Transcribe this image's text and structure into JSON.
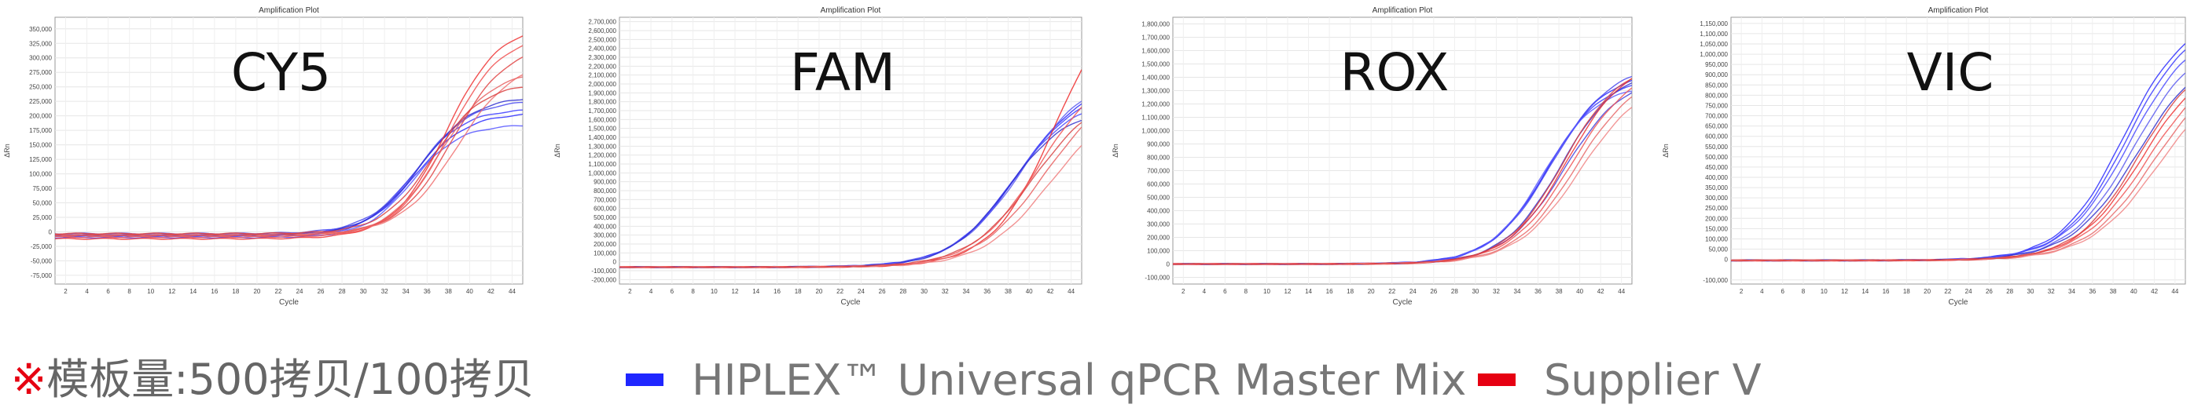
{
  "chart_data": [
    {
      "type": "line",
      "title": "Amplification Plot",
      "label": "CY5",
      "xlabel": "Cycle",
      "ylabel": "ΔRn",
      "xlim": [
        1,
        45
      ],
      "ylim": [
        -90000,
        370000
      ],
      "x_ticks": [
        2,
        4,
        6,
        8,
        10,
        12,
        14,
        16,
        18,
        20,
        22,
        24,
        26,
        28,
        30,
        32,
        34,
        36,
        38,
        40,
        42,
        44
      ],
      "y_ticks": [
        -75000,
        -50000,
        -25000,
        0,
        25000,
        50000,
        75000,
        100000,
        125000,
        150000,
        175000,
        200000,
        225000,
        250000,
        275000,
        300000,
        325000,
        350000
      ],
      "y_tick_labels": [
        "-75,000",
        "-50,000",
        "-25,000",
        "0",
        "25,000",
        "50,000",
        "75,000",
        "100,000",
        "125,000",
        "150,000",
        "175,000",
        "200,000",
        "225,000",
        "250,000",
        "275,000",
        "300,000",
        "325,000",
        "350,000"
      ],
      "series": [
        {
          "group": "blue",
          "color": "#2b2bff",
          "plateau": 210000,
          "mid": 35.0,
          "k": 0.42,
          "base": -5000
        },
        {
          "group": "blue",
          "color": "#3a3aff",
          "plateau": 220000,
          "mid": 34.8,
          "k": 0.43,
          "base": -8000
        },
        {
          "group": "blue",
          "color": "#4646ee",
          "plateau": 230000,
          "mid": 35.2,
          "k": 0.41,
          "base": -3000
        },
        {
          "group": "blue",
          "color": "#5555ff",
          "plateau": 195000,
          "mid": 34.6,
          "k": 0.45,
          "base": -10000
        },
        {
          "group": "blue",
          "color": "#3030d0",
          "plateau": 240000,
          "mid": 35.4,
          "k": 0.4,
          "base": -6000
        },
        {
          "group": "red",
          "color": "#ee3333",
          "plateau": 370000,
          "mid": 37.8,
          "k": 0.4,
          "base": -12000
        },
        {
          "group": "red",
          "color": "#f05050",
          "plateau": 350000,
          "mid": 38.0,
          "k": 0.4,
          "base": -9000
        },
        {
          "group": "red",
          "color": "#e04444",
          "plateau": 330000,
          "mid": 38.4,
          "k": 0.39,
          "base": -6000
        },
        {
          "group": "red",
          "color": "#f07070",
          "plateau": 300000,
          "mid": 38.8,
          "k": 0.38,
          "base": -4000
        },
        {
          "group": "red",
          "color": "#e86060",
          "plateau": 285000,
          "mid": 37.2,
          "k": 0.41,
          "base": -7000
        },
        {
          "group": "red",
          "color": "#d94040",
          "plateau": 260000,
          "mid": 36.5,
          "k": 0.42,
          "base": -3000
        }
      ]
    },
    {
      "type": "line",
      "title": "Amplification Plot",
      "label": "FAM",
      "xlabel": "Cycle",
      "ylabel": "ΔRn",
      "xlim": [
        1,
        45
      ],
      "ylim": [
        -250000,
        2750000
      ],
      "x_ticks": [
        2,
        4,
        6,
        8,
        10,
        12,
        14,
        16,
        18,
        20,
        22,
        24,
        26,
        28,
        30,
        32,
        34,
        36,
        38,
        40,
        42,
        44
      ],
      "y_ticks": [
        -200000,
        -100000,
        0,
        100000,
        200000,
        300000,
        400000,
        500000,
        600000,
        700000,
        800000,
        900000,
        1000000,
        1100000,
        1200000,
        1300000,
        1400000,
        1500000,
        1600000,
        1700000,
        1800000,
        1900000,
        2000000,
        2100000,
        2200000,
        2300000,
        2400000,
        2500000,
        2600000,
        2700000
      ],
      "y_tick_labels": [
        "-200,000",
        "-100,000",
        "0",
        "100,000",
        "200,000",
        "300,000",
        "400,000",
        "500,000",
        "600,000",
        "700,000",
        "800,000",
        "900,000",
        "1,000,000",
        "1,100,000",
        "1,200,000",
        "1,300,000",
        "1,400,000",
        "1,500,000",
        "1,600,000",
        "1,700,000",
        "1,800,000",
        "1,900,000",
        "2,000,000",
        "2,100,000",
        "2,200,000",
        "2,300,000",
        "2,400,000",
        "2,500,000",
        "2,600,000",
        "2,700,000"
      ],
      "series": [
        {
          "group": "blue",
          "color": "#2b2bff",
          "plateau": 2100000,
          "mid": 39.0,
          "k": 0.32,
          "base": -60000
        },
        {
          "group": "blue",
          "color": "#3a3aff",
          "plateau": 2000000,
          "mid": 38.6,
          "k": 0.33,
          "base": -60000
        },
        {
          "group": "blue",
          "color": "#4a4aff",
          "plateau": 1900000,
          "mid": 38.3,
          "k": 0.34,
          "base": -60000
        },
        {
          "group": "blue",
          "color": "#5a5aee",
          "plateau": 2200000,
          "mid": 39.4,
          "k": 0.31,
          "base": -60000
        },
        {
          "group": "blue",
          "color": "#3333cc",
          "plateau": 1800000,
          "mid": 38.0,
          "k": 0.35,
          "base": -60000
        },
        {
          "group": "red",
          "color": "#ee2a2a",
          "plateau": 3200000,
          "mid": 42.5,
          "k": 0.33,
          "base": -60000
        },
        {
          "group": "red",
          "color": "#f05555",
          "plateau": 2300000,
          "mid": 41.0,
          "k": 0.32,
          "base": -60000
        },
        {
          "group": "red",
          "color": "#e86060",
          "plateau": 2100000,
          "mid": 41.5,
          "k": 0.31,
          "base": -60000
        },
        {
          "group": "red",
          "color": "#f08080",
          "plateau": 1900000,
          "mid": 42.0,
          "k": 0.31,
          "base": -60000
        },
        {
          "group": "red",
          "color": "#d84545",
          "plateau": 2000000,
          "mid": 40.4,
          "k": 0.32,
          "base": -60000
        }
      ]
    },
    {
      "type": "line",
      "title": "Amplification Plot",
      "label": "ROX",
      "xlabel": "Cycle",
      "ylabel": "ΔRn",
      "xlim": [
        1,
        45
      ],
      "ylim": [
        -150000,
        1850000
      ],
      "x_ticks": [
        2,
        4,
        6,
        8,
        10,
        12,
        14,
        16,
        18,
        20,
        22,
        24,
        26,
        28,
        30,
        32,
        34,
        36,
        38,
        40,
        42,
        44
      ],
      "y_ticks": [
        -100000,
        0,
        100000,
        200000,
        300000,
        400000,
        500000,
        600000,
        700000,
        800000,
        900000,
        1000000,
        1100000,
        1200000,
        1300000,
        1400000,
        1500000,
        1600000,
        1700000,
        1800000
      ],
      "y_tick_labels": [
        "-100,000",
        "0",
        "100,000",
        "200,000",
        "300,000",
        "400,000",
        "500,000",
        "600,000",
        "700,000",
        "800,000",
        "900,000",
        "1,000,000",
        "1,100,000",
        "1,200,000",
        "1,300,000",
        "1,400,000",
        "1,500,000",
        "1,600,000",
        "1,700,000",
        "1,800,000"
      ],
      "series": [
        {
          "group": "blue",
          "color": "#2b2bff",
          "plateau": 1450000,
          "mid": 37.0,
          "k": 0.36,
          "base": 0
        },
        {
          "group": "blue",
          "color": "#3a3aff",
          "plateau": 1400000,
          "mid": 36.8,
          "k": 0.37,
          "base": 0
        },
        {
          "group": "blue",
          "color": "#4646ee",
          "plateau": 1500000,
          "mid": 37.3,
          "k": 0.35,
          "base": 0
        },
        {
          "group": "blue",
          "color": "#5a5aff",
          "plateau": 1350000,
          "mid": 36.5,
          "k": 0.38,
          "base": 0
        },
        {
          "group": "blue",
          "color": "#3333cc",
          "plateau": 1480000,
          "mid": 38.2,
          "k": 0.36,
          "base": 0
        },
        {
          "group": "blue",
          "color": "#4444dd",
          "plateau": 1420000,
          "mid": 38.5,
          "k": 0.35,
          "base": 0
        },
        {
          "group": "red",
          "color": "#ee3333",
          "plateau": 1550000,
          "mid": 38.8,
          "k": 0.35,
          "base": 0
        },
        {
          "group": "red",
          "color": "#f05555",
          "plateau": 1500000,
          "mid": 39.2,
          "k": 0.34,
          "base": 0
        },
        {
          "group": "red",
          "color": "#e86a6a",
          "plateau": 1450000,
          "mid": 39.6,
          "k": 0.34,
          "base": 0
        },
        {
          "group": "red",
          "color": "#f08585",
          "plateau": 1400000,
          "mid": 40.0,
          "k": 0.33,
          "base": 0
        },
        {
          "group": "red",
          "color": "#d84040",
          "plateau": 1520000,
          "mid": 38.4,
          "k": 0.36,
          "base": 0
        }
      ]
    },
    {
      "type": "line",
      "title": "Amplification Plot",
      "label": "VIC",
      "xlabel": "Cycle",
      "ylabel": "ΔRn",
      "xlim": [
        1,
        45
      ],
      "ylim": [
        -120000,
        1180000
      ],
      "x_ticks": [
        2,
        4,
        6,
        8,
        10,
        12,
        14,
        16,
        18,
        20,
        22,
        24,
        26,
        28,
        30,
        32,
        34,
        36,
        38,
        40,
        42,
        44
      ],
      "y_ticks": [
        -100000,
        0,
        50000,
        100000,
        150000,
        200000,
        250000,
        300000,
        350000,
        400000,
        450000,
        500000,
        550000,
        600000,
        650000,
        700000,
        750000,
        800000,
        850000,
        900000,
        950000,
        1000000,
        1050000,
        1100000,
        1150000
      ],
      "y_tick_labels": [
        "-100,000",
        "0",
        "50,000",
        "100,000",
        "150,000",
        "200,000",
        "250,000",
        "300,000",
        "350,000",
        "400,000",
        "450,000",
        "500,000",
        "550,000",
        "600,000",
        "650,000",
        "700,000",
        "750,000",
        "800,000",
        "850,000",
        "900,000",
        "950,000",
        "1,000,000",
        "1,050,000",
        "1,100,000",
        "1,150,000"
      ],
      "series": [
        {
          "group": "blue",
          "color": "#2b2bff",
          "plateau": 1200000,
          "mid": 39.0,
          "k": 0.33,
          "base": -5000
        },
        {
          "group": "blue",
          "color": "#3a3aff",
          "plateau": 1180000,
          "mid": 39.3,
          "k": 0.33,
          "base": -5000
        },
        {
          "group": "blue",
          "color": "#4a4aff",
          "plateau": 1150000,
          "mid": 39.6,
          "k": 0.32,
          "base": -5000
        },
        {
          "group": "blue",
          "color": "#5a5aee",
          "plateau": 1100000,
          "mid": 40.0,
          "k": 0.32,
          "base": -5000
        },
        {
          "group": "blue",
          "color": "#3333cc",
          "plateau": 1050000,
          "mid": 40.4,
          "k": 0.31,
          "base": -5000
        },
        {
          "group": "red",
          "color": "#ee3333",
          "plateau": 1000000,
          "mid": 40.8,
          "k": 0.32,
          "base": -5000
        },
        {
          "group": "red",
          "color": "#f05555",
          "plateau": 980000,
          "mid": 41.3,
          "k": 0.31,
          "base": -5000
        },
        {
          "group": "red",
          "color": "#e86a6a",
          "plateau": 950000,
          "mid": 41.8,
          "k": 0.31,
          "base": -5000
        },
        {
          "group": "red",
          "color": "#f08585",
          "plateau": 920000,
          "mid": 42.3,
          "k": 0.3,
          "base": -5000
        },
        {
          "group": "red",
          "color": "#d84040",
          "plateau": 1020000,
          "mid": 40.5,
          "k": 0.33,
          "base": -5000
        }
      ]
    }
  ],
  "legend": {
    "note_mark": "※",
    "note_text": "模板量:500拷贝/100拷贝",
    "items": [
      {
        "label": "HIPLEX™ Universal qPCR Master Mix",
        "color": "#1f26ff"
      },
      {
        "label": "Supplier V",
        "color": "#e60012"
      }
    ]
  }
}
